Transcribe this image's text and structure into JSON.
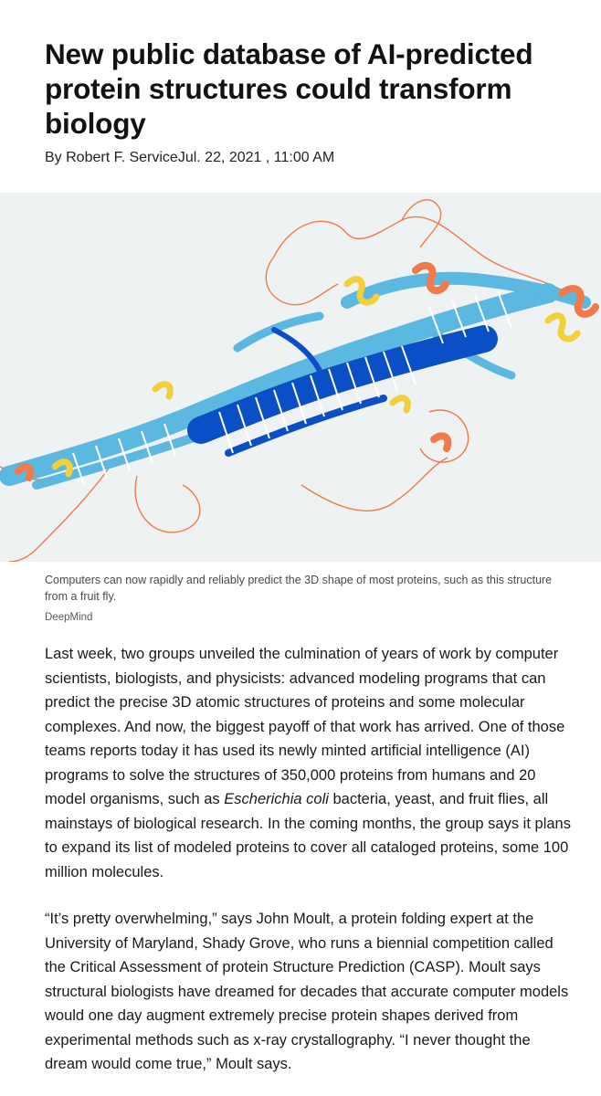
{
  "article": {
    "title": "New public database of AI-predicted protein structures could transform biology",
    "byline": "By Robert F. ServiceJul. 22, 2021 , 11:00 AM",
    "figure": {
      "caption": "Computers can now rapidly and reliably predict the 3D shape of most proteins, such as this structure from a fruit fly.",
      "credit": "DeepMind",
      "colors": {
        "background": "#eef2f2",
        "very_high_confidence": "#0b4fc6",
        "confident": "#5bb8e0",
        "low_confidence": "#f2d03b",
        "very_low_confidence": "#f07a4b"
      }
    },
    "paragraphs": [
      {
        "text_before_italic": "Last week, two groups unveiled the culmination of years of work by computer scientists, biologists, and physicists: advanced modeling programs that can predict the precise 3D atomic structures of proteins and some molecular complexes. And now, the biggest payoff of that work has arrived. One of those teams reports today it has used its newly minted artificial intelligence (AI) programs to solve the structures of 350,000 proteins from humans and 20 model organisms, such as ",
        "italic": "Escherichia coli",
        "text_after_italic": " bacteria, yeast, and fruit flies, all mainstays of biological research. In the coming months, the group says it plans to expand its list of modeled proteins to cover all cataloged proteins, some 100 million molecules."
      },
      {
        "text": "“It’s pretty overwhelming,” says John Moult, a protein folding expert at the University of Maryland, Shady Grove, who runs a biennial competition called the Critical Assessment of protein Structure Prediction (CASP). Moult says structural biologists have dreamed for decades that accurate computer models would one day augment extremely precise protein shapes derived from experimental methods such as x-ray crystallography. “I never thought the dream would come true,” Moult says."
      }
    ]
  }
}
